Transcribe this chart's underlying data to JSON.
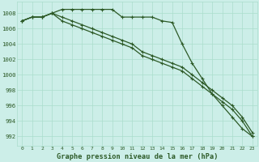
{
  "x": [
    0,
    1,
    2,
    3,
    4,
    5,
    6,
    7,
    8,
    9,
    10,
    11,
    12,
    13,
    14,
    15,
    16,
    17,
    18,
    19,
    20,
    21,
    22,
    23
  ],
  "line1": [
    1007.0,
    1007.5,
    1007.5,
    1008.0,
    1008.5,
    1008.5,
    1008.5,
    1008.5,
    1008.5,
    1008.5,
    1007.5,
    1007.5,
    1007.5,
    1007.5,
    1007.0,
    1006.8,
    1004.0,
    1001.5,
    999.5,
    997.5,
    996.0,
    994.5,
    993.0,
    992.0
  ],
  "line2": [
    1007.0,
    1007.5,
    1007.5,
    1008.0,
    1007.5,
    1007.0,
    1006.5,
    1006.0,
    1005.5,
    1005.0,
    1004.5,
    1004.0,
    1003.0,
    1002.5,
    1002.0,
    1001.5,
    1001.0,
    1000.0,
    999.0,
    998.0,
    997.0,
    996.0,
    994.5,
    992.5
  ],
  "line3": [
    1007.0,
    1007.5,
    1007.5,
    1008.0,
    1007.0,
    1006.5,
    1006.0,
    1005.5,
    1005.0,
    1004.5,
    1004.0,
    1003.5,
    1002.5,
    1002.0,
    1001.5,
    1001.0,
    1000.5,
    999.5,
    998.5,
    997.5,
    996.5,
    995.5,
    994.0,
    992.0
  ],
  "bg_color": "#cceee8",
  "grid_color": "#aaddcc",
  "line_color": "#2d5a27",
  "marker": "+",
  "xlabel": "Graphe pression niveau de la mer (hPa)",
  "yticks": [
    992,
    994,
    996,
    998,
    1000,
    1002,
    1004,
    1006,
    1008
  ],
  "ylim": [
    990.8,
    1009.5
  ],
  "xlim": [
    -0.5,
    23.5
  ],
  "xtick_fontsize": 4.5,
  "ytick_fontsize": 5.2,
  "xlabel_fontsize": 6.2
}
